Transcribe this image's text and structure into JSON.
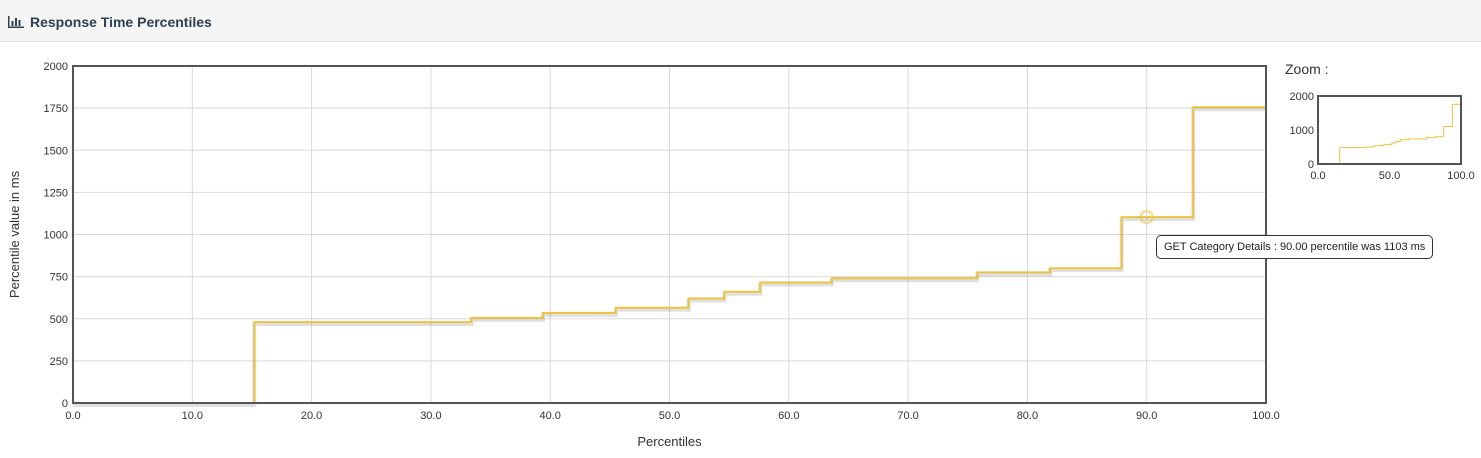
{
  "header": {
    "title": "Response Time Percentiles",
    "icon": "bar-chart-icon"
  },
  "zoom": {
    "label": "Zoom :",
    "y_ticks": [
      "0",
      "1000",
      "2000"
    ],
    "x_ticks": [
      "0.0",
      "50.0",
      "100.0"
    ]
  },
  "tooltip": {
    "text": "GET Category Details : 90.00 percentile was 1103 ms"
  },
  "colors": {
    "series": "#edc240",
    "grid": "#d8d8d8",
    "frame": "#545454"
  },
  "chart_data": {
    "type": "line",
    "xlabel": "Percentiles",
    "ylabel": "Percentile value in ms",
    "xlim": [
      0,
      100
    ],
    "ylim": [
      0,
      2000
    ],
    "x_ticks": [
      "0.0",
      "10.0",
      "20.0",
      "30.0",
      "40.0",
      "50.0",
      "60.0",
      "70.0",
      "80.0",
      "90.0",
      "100.0"
    ],
    "y_ticks": [
      "0",
      "250",
      "500",
      "750",
      "1000",
      "1250",
      "1500",
      "1750",
      "2000"
    ],
    "grid": true,
    "highlight": {
      "x": 90.0,
      "y": 1103
    },
    "series": [
      {
        "name": "GET Category Details",
        "step": true,
        "points": [
          [
            0,
            0
          ],
          [
            15.2,
            480
          ],
          [
            33.4,
            505
          ],
          [
            39.4,
            535
          ],
          [
            45.5,
            565
          ],
          [
            51.6,
            620
          ],
          [
            54.6,
            660
          ],
          [
            57.6,
            715
          ],
          [
            63.6,
            740
          ],
          [
            75.8,
            775
          ],
          [
            81.9,
            800
          ],
          [
            87.9,
            1103
          ],
          [
            93.9,
            1755
          ],
          [
            100,
            1755
          ]
        ]
      }
    ]
  }
}
